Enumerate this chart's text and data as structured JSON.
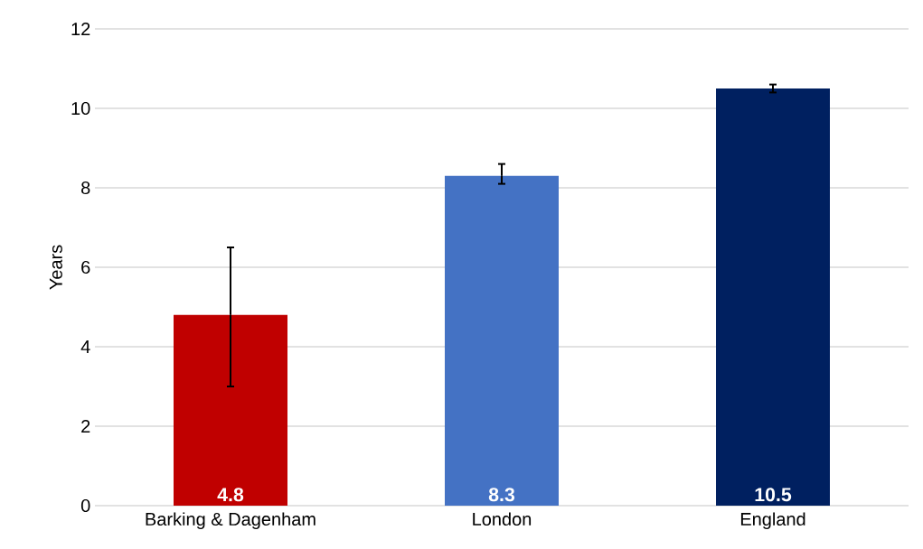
{
  "chart_data": {
    "type": "bar",
    "ylabel": "Years",
    "categories": [
      "Barking & Dagenham",
      "London",
      "England"
    ],
    "values": [
      4.8,
      8.3,
      10.5
    ],
    "colors": [
      "#c00000",
      "#4472c4",
      "#002060"
    ],
    "errors": [
      [
        3.0,
        6.5
      ],
      [
        8.1,
        8.6
      ],
      [
        10.4,
        10.6
      ]
    ],
    "ylim": [
      0,
      12
    ],
    "yticks": [
      0,
      2,
      4,
      6,
      8,
      10,
      12
    ],
    "grid": "y",
    "data_labels": true
  }
}
